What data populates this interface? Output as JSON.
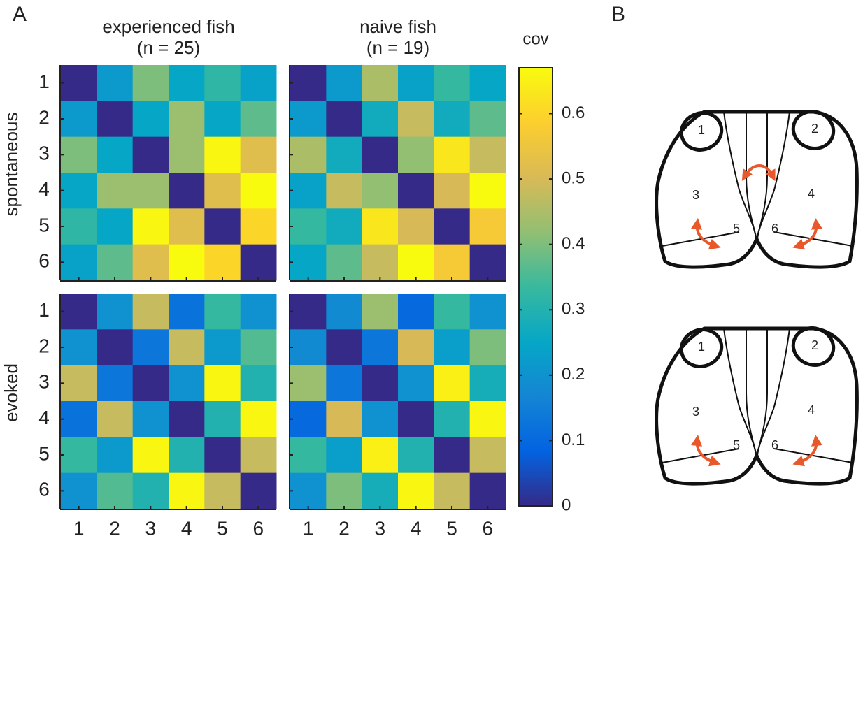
{
  "panel_labels": [
    "A",
    "B"
  ],
  "chart_data": {
    "type": "heatmap",
    "colormap": "parula",
    "column_titles": [
      [
        "experienced fish",
        "(n = 25)"
      ],
      [
        "naive fish",
        "(n = 19)"
      ]
    ],
    "row_labels": [
      "spontaneous",
      "evoked"
    ],
    "categories": [
      1,
      2,
      3,
      4,
      5,
      6
    ],
    "matrices": [
      [
        [
          [
            0,
            0.22,
            0.4,
            0.25,
            0.32,
            0.24
          ],
          [
            0.22,
            0,
            0.25,
            0.43,
            0.25,
            0.37
          ],
          [
            0.4,
            0.25,
            0,
            0.43,
            0.66,
            0.52
          ],
          [
            0.25,
            0.43,
            0.43,
            0,
            0.52,
            0.67
          ],
          [
            0.32,
            0.25,
            0.66,
            0.52,
            0,
            0.6
          ],
          [
            0.24,
            0.37,
            0.52,
            0.67,
            0.6,
            0
          ]
        ],
        [
          [
            0,
            0.22,
            0.45,
            0.24,
            0.33,
            0.25
          ],
          [
            0.22,
            0,
            0.27,
            0.48,
            0.27,
            0.37
          ],
          [
            0.45,
            0.27,
            0,
            0.42,
            0.63,
            0.48
          ],
          [
            0.24,
            0.48,
            0.42,
            0,
            0.5,
            0.67
          ],
          [
            0.33,
            0.27,
            0.63,
            0.5,
            0,
            0.57
          ],
          [
            0.25,
            0.37,
            0.48,
            0.67,
            0.57,
            0
          ]
        ]
      ],
      [
        [
          [
            0,
            0.2,
            0.48,
            0.12,
            0.33,
            0.2
          ],
          [
            0.2,
            0,
            0.13,
            0.48,
            0.22,
            0.36
          ],
          [
            0.48,
            0.13,
            0,
            0.2,
            0.66,
            0.3
          ],
          [
            0.12,
            0.48,
            0.2,
            0,
            0.3,
            0.66
          ],
          [
            0.33,
            0.22,
            0.66,
            0.3,
            0,
            0.48
          ],
          [
            0.2,
            0.36,
            0.3,
            0.66,
            0.48,
            0
          ]
        ],
        [
          [
            0,
            0.18,
            0.43,
            0.1,
            0.33,
            0.2
          ],
          [
            0.18,
            0,
            0.13,
            0.5,
            0.23,
            0.4
          ],
          [
            0.43,
            0.13,
            0,
            0.2,
            0.65,
            0.28
          ],
          [
            0.1,
            0.5,
            0.2,
            0,
            0.3,
            0.66
          ],
          [
            0.33,
            0.23,
            0.65,
            0.3,
            0,
            0.48
          ],
          [
            0.2,
            0.4,
            0.28,
            0.66,
            0.48,
            0
          ]
        ]
      ]
    ],
    "colorbar": {
      "label": "cov",
      "lim": [
        0,
        0.67
      ],
      "ticks": [
        0,
        0.1,
        0.2,
        0.3,
        0.4,
        0.5,
        0.6
      ]
    }
  },
  "diagrams": [
    {
      "region_labels": [
        "1",
        "2",
        "3",
        "4",
        "5",
        "6"
      ]
    },
    {
      "region_labels": [
        "1",
        "2",
        "3",
        "4",
        "5",
        "6"
      ]
    }
  ]
}
